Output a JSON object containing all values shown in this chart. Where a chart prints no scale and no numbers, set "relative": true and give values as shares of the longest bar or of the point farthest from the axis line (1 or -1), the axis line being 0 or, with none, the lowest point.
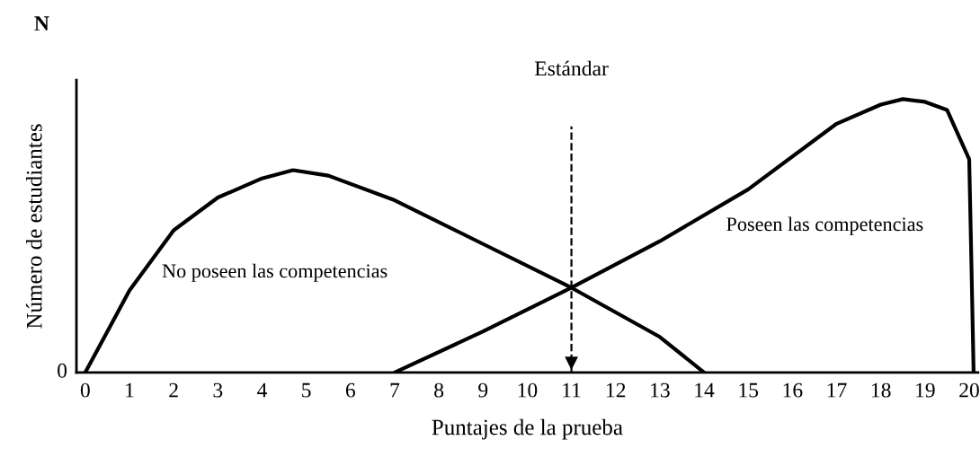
{
  "chart_data": {
    "type": "line",
    "relative": true,
    "xlabel": "Puntajes de la prueba",
    "ylabel": "Número de estudiantes",
    "x": [
      0,
      0.5,
      1,
      2,
      3,
      4,
      4.7,
      5.5,
      7,
      9,
      11,
      13,
      14
    ],
    "xlim": [
      -0.2,
      20.2
    ],
    "xticks": [
      0,
      1,
      2,
      3,
      4,
      5,
      6,
      7,
      8,
      9,
      10,
      11,
      12,
      13,
      14,
      15,
      16,
      17,
      18,
      19,
      20
    ],
    "series": [
      {
        "name": "No poseen las competencias",
        "color": "#000000",
        "values": [
          0,
          0.15,
          0.3,
          0.52,
          0.64,
          0.71,
          0.74,
          0.72,
          0.63,
          0.47,
          0.31,
          0.13,
          0
        ]
      },
      {
        "name": "Poseen las competencias",
        "color": "#000000",
        "x": [
          7,
          9,
          11,
          13,
          15,
          17,
          18,
          18.5,
          19,
          19.5,
          20,
          20.05,
          20.1
        ],
        "values": [
          0,
          0.15,
          0.31,
          0.48,
          0.67,
          0.91,
          0.98,
          1.0,
          0.99,
          0.96,
          0.78,
          0.4,
          0
        ]
      }
    ],
    "ref_lines": [
      {
        "axis": "x",
        "value": 11,
        "label": "Estándar",
        "line_style": "dashed",
        "color": "#000000"
      }
    ],
    "annotations": [
      "0",
      "N"
    ],
    "grid": false,
    "legend": false,
    "marker": "none",
    "line_style": "solid"
  }
}
